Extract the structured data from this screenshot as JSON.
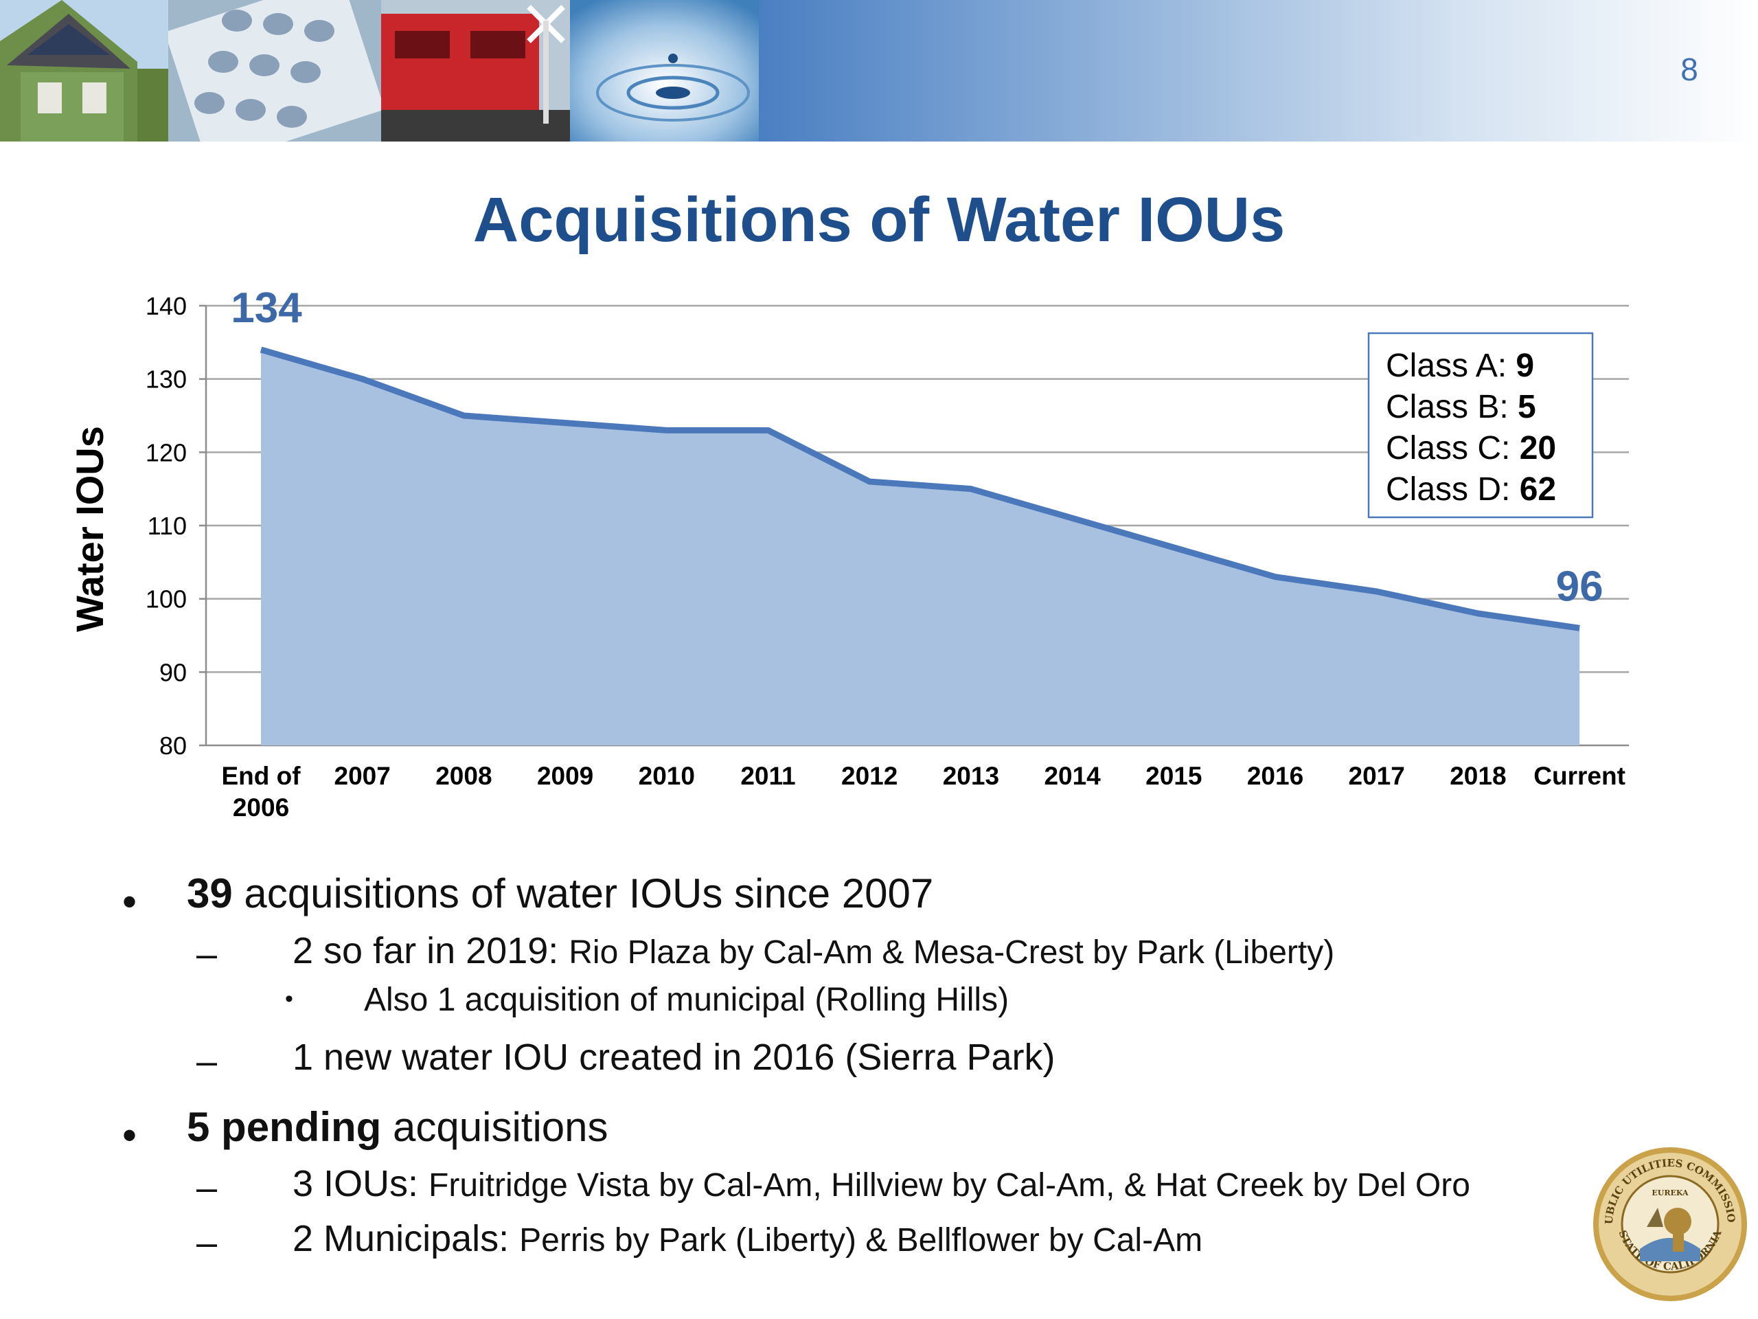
{
  "slide": {
    "number": "8",
    "title": "Acquisitions of Water IOUs"
  },
  "banner": {
    "photos": [
      "house-solar-photo",
      "telephone-keypad-photo",
      "train-crossing-photo",
      "water-drop-photo"
    ]
  },
  "chart_data": {
    "type": "area",
    "title": "",
    "ylabel": "Water IOUs",
    "xlabel": "",
    "ylim": [
      80,
      140
    ],
    "yticks": [
      80,
      90,
      100,
      110,
      120,
      130,
      140
    ],
    "grid": true,
    "categories": [
      "End of 2006",
      "2007",
      "2008",
      "2009",
      "2010",
      "2011",
      "2012",
      "2013",
      "2014",
      "2015",
      "2016",
      "2017",
      "2018",
      "Current"
    ],
    "category_lines": [
      [
        "End of",
        "2006"
      ],
      [
        "2007"
      ],
      [
        "2008"
      ],
      [
        "2009"
      ],
      [
        "2010"
      ],
      [
        "2011"
      ],
      [
        "2012"
      ],
      [
        "2013"
      ],
      [
        "2014"
      ],
      [
        "2015"
      ],
      [
        "2016"
      ],
      [
        "2017"
      ],
      [
        "2018"
      ],
      [
        "Current"
      ]
    ],
    "values": [
      134,
      130,
      125,
      124,
      123,
      123,
      116,
      115,
      111,
      107,
      103,
      101,
      98,
      96
    ],
    "data_labels": [
      {
        "index": 0,
        "text": "134"
      },
      {
        "index": 13,
        "text": "96"
      }
    ],
    "colors": {
      "line": "#4a78bb",
      "fill": "#a9c1e1",
      "labels": "#3d69a8",
      "grid": "#a6a6a6"
    },
    "annotation": {
      "lines": [
        {
          "label": "Class A: ",
          "value": "9"
        },
        {
          "label": "Class B: ",
          "value": "5"
        },
        {
          "label": "Class C: ",
          "value": "20"
        },
        {
          "label": "Class D: ",
          "value": "62"
        }
      ],
      "placement": "top-right"
    }
  },
  "bullets": {
    "b1": {
      "bold": "39",
      "text": " acquisitions of water IOUs since 2007"
    },
    "b1_1": {
      "lead": "2 so far in 2019: ",
      "small": "Rio Plaza by Cal-Am & Mesa-Crest by Park (Liberty)"
    },
    "b1_1_1": {
      "text": "Also 1 acquisition of municipal (Rolling Hills)"
    },
    "b1_2": {
      "text": "1 new water IOU created in 2016 (Sierra Park)"
    },
    "b2": {
      "bold": "5 pending",
      "text": " acquisitions"
    },
    "b2_1": {
      "lead": "3 IOUs: ",
      "small": "Fruitridge Vista by Cal-Am, Hillview by Cal-Am, & Hat Creek by Del Oro"
    },
    "b2_2": {
      "lead": "2 Municipals: ",
      "small": "Perris by Park (Liberty) & Bellflower by Cal-Am"
    }
  },
  "symbols": {
    "bullet": "•",
    "dash": "–",
    "sub_bullet": "•"
  },
  "seal": {
    "top_text": "PUBLIC UTILITIES COMMISSION",
    "bottom_text": "STATE OF CALIFORNIA",
    "motto": "EUREKA"
  }
}
